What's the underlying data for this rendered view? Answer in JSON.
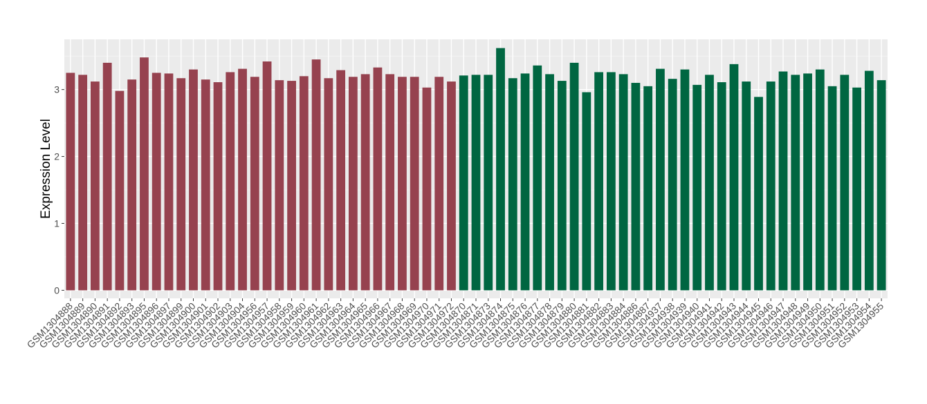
{
  "chart_data": {
    "type": "bar",
    "title": "",
    "xlabel": "",
    "ylabel": "Expression Level",
    "ylim": [
      -0.12,
      3.75
    ],
    "yticks": [
      0,
      1,
      2,
      3
    ],
    "grid": true,
    "panel_background": "#ebebeb",
    "categories": [
      "GSM1304888",
      "GSM1304889",
      "GSM1304890",
      "GSM1304891",
      "GSM1304892",
      "GSM1304893",
      "GSM1304895",
      "GSM1304896",
      "GSM1304897",
      "GSM1304899",
      "GSM1304900",
      "GSM1304901",
      "GSM1304902",
      "GSM1304903",
      "GSM1304904",
      "GSM1304956",
      "GSM1304957",
      "GSM1304958",
      "GSM1304959",
      "GSM1304960",
      "GSM1304961",
      "GSM1304962",
      "GSM1304963",
      "GSM1304964",
      "GSM1304965",
      "GSM1304966",
      "GSM1304967",
      "GSM1304968",
      "GSM1304969",
      "GSM1304970",
      "GSM1304971",
      "GSM1304972",
      "GSM1304870",
      "GSM1304871",
      "GSM1304873",
      "GSM1304874",
      "GSM1304875",
      "GSM1304876",
      "GSM1304877",
      "GSM1304878",
      "GSM1304879",
      "GSM1304880",
      "GSM1304881",
      "GSM1304882",
      "GSM1304883",
      "GSM1304884",
      "GSM1304886",
      "GSM1304887",
      "GSM1304937",
      "GSM1304938",
      "GSM1304939",
      "GSM1304940",
      "GSM1304941",
      "GSM1304942",
      "GSM1304943",
      "GSM1304944",
      "GSM1304945",
      "GSM1304946",
      "GSM1304947",
      "GSM1304948",
      "GSM1304949",
      "GSM1304950",
      "GSM1304951",
      "GSM1304952",
      "GSM1304953",
      "GSM1304954",
      "GSM1304955"
    ],
    "values": [
      3.25,
      3.22,
      3.12,
      3.4,
      2.98,
      3.15,
      3.48,
      3.25,
      3.24,
      3.17,
      3.3,
      3.15,
      3.11,
      3.26,
      3.31,
      3.19,
      3.42,
      3.14,
      3.13,
      3.2,
      3.45,
      3.17,
      3.29,
      3.19,
      3.23,
      3.33,
      3.23,
      3.19,
      3.19,
      3.03,
      3.19,
      3.12,
      3.21,
      3.22,
      3.22,
      3.62,
      3.17,
      3.24,
      3.36,
      3.23,
      3.13,
      3.4,
      2.96,
      3.26,
      3.26,
      3.23,
      3.1,
      3.05,
      3.31,
      3.16,
      3.3,
      3.07,
      3.22,
      3.11,
      3.38,
      3.12,
      2.89,
      3.12,
      3.27,
      3.22,
      3.24,
      3.3,
      3.05,
      3.22,
      3.03,
      3.28,
      3.14
    ],
    "group_sizes": [
      32,
      35
    ],
    "group_colors": [
      "#96424f",
      "#006641"
    ]
  }
}
